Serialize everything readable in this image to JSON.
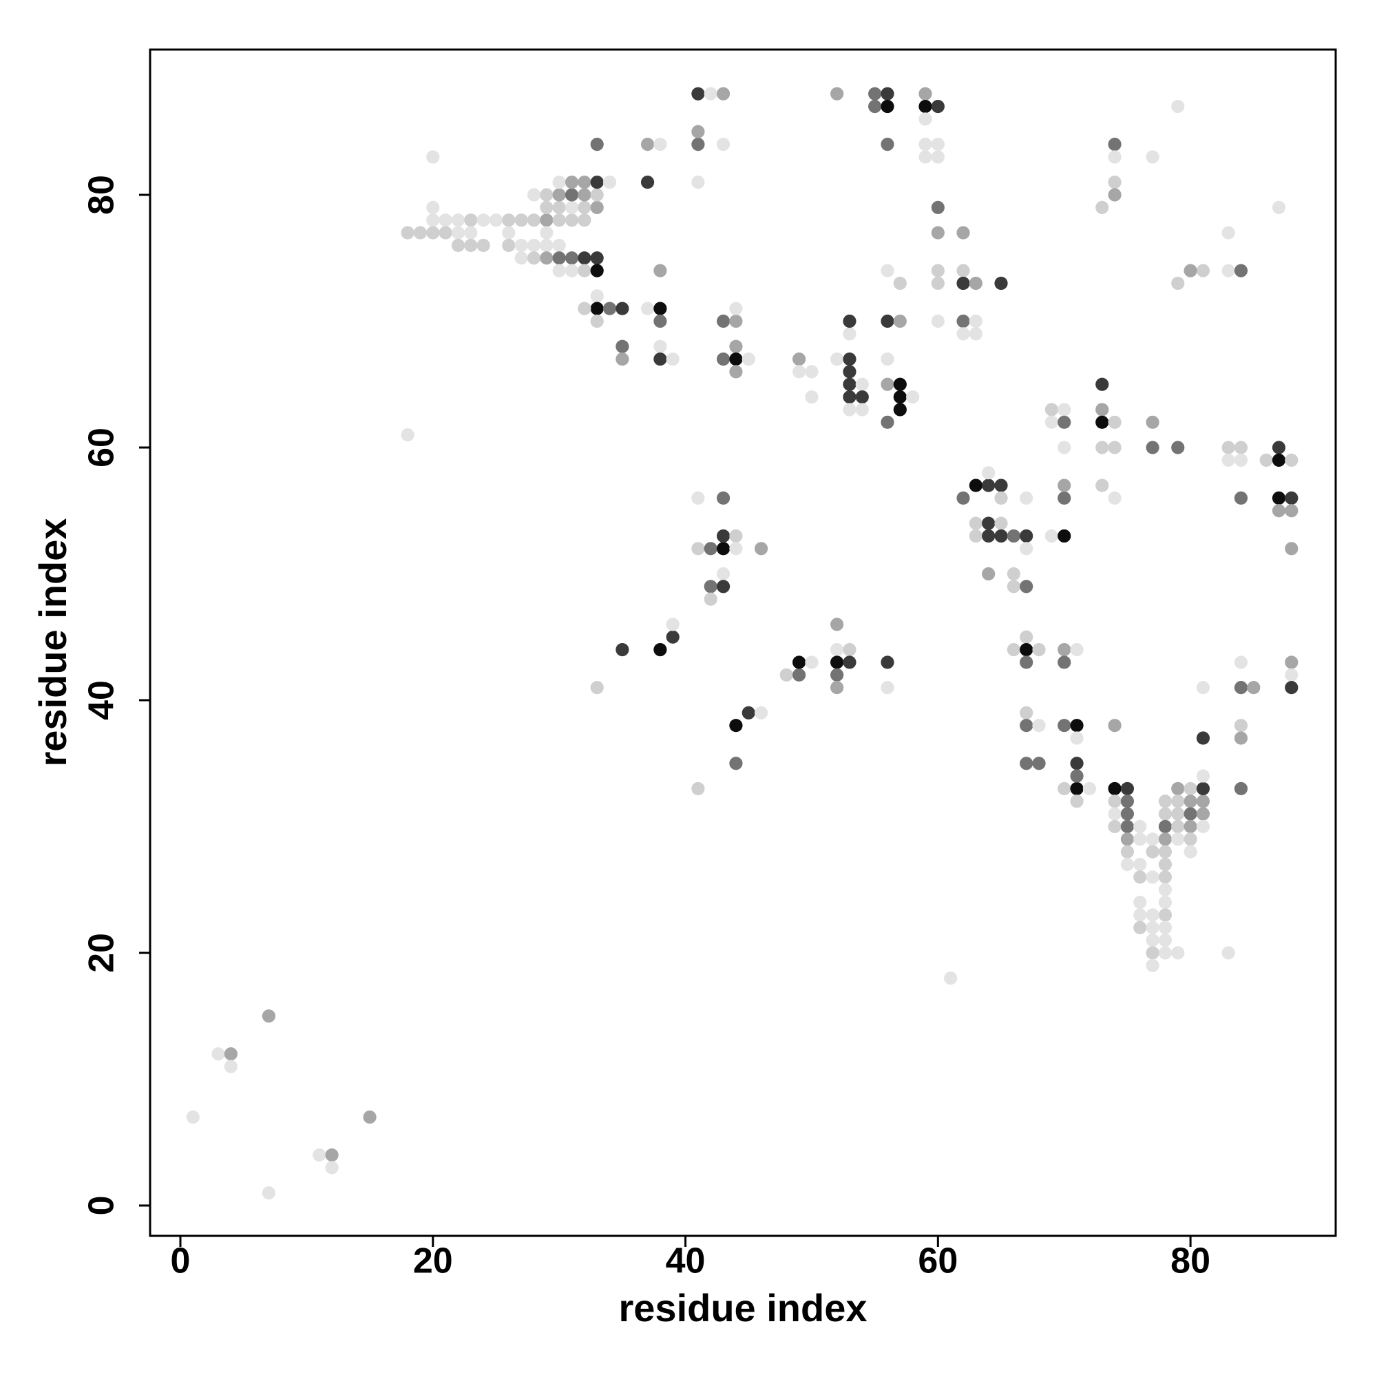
{
  "chart_data": {
    "type": "scatter",
    "x_label": "residue index",
    "y_label": "residue index",
    "xlim": [
      -2.4,
      91.5
    ],
    "ylim": [
      -2.4,
      91.5
    ],
    "xticks": [
      0,
      20,
      40,
      60,
      80
    ],
    "yticks": [
      0,
      20,
      40,
      60,
      80
    ],
    "grid": false,
    "palette": {
      "L": "#e3e3e3",
      "M": "#cfcfcf",
      "G": "#a6a6a6",
      "D": "#737373",
      "K": "#3a3a3a",
      "B": "#0d0d0d"
    },
    "x": [
      1,
      3,
      4,
      4,
      7,
      7,
      11,
      12,
      12,
      15,
      18,
      61,
      20,
      20,
      20,
      21,
      22,
      23,
      24,
      25,
      26,
      27,
      28,
      29,
      30,
      31,
      32,
      18,
      19,
      20,
      21,
      22,
      23,
      26,
      29,
      22,
      23,
      24,
      26,
      27,
      28,
      29,
      30,
      27,
      28,
      29,
      30,
      31,
      32,
      33,
      30,
      31,
      32,
      33,
      29,
      30,
      31,
      32,
      33,
      28,
      29,
      30,
      31,
      32,
      33,
      30,
      31,
      32,
      33,
      34,
      33,
      37,
      37,
      38,
      41,
      41,
      41,
      43,
      41,
      42,
      43,
      33,
      33,
      33,
      32,
      34,
      35,
      35,
      35,
      37,
      38,
      38,
      38,
      38,
      39,
      38,
      43,
      44,
      44,
      44,
      43,
      44,
      45,
      44,
      49,
      49,
      50,
      50,
      52,
      53,
      53,
      53,
      54,
      53,
      54,
      53,
      54,
      53,
      53,
      56,
      57,
      56,
      56,
      57,
      57,
      58,
      57,
      56,
      56,
      57,
      52,
      55,
      56,
      55,
      56,
      56,
      59,
      59,
      60,
      59,
      59,
      60,
      59,
      60,
      60,
      60,
      60,
      60,
      60,
      62,
      62,
      62,
      63,
      62,
      63,
      62,
      63,
      65,
      74,
      74,
      74,
      74,
      73,
      77,
      79,
      83,
      83,
      84,
      81,
      80,
      79,
      87,
      69,
      70,
      69,
      70,
      70,
      73,
      73,
      73,
      74,
      73,
      74,
      73,
      74,
      77,
      77,
      79,
      83,
      84,
      83,
      84,
      86,
      87,
      87,
      88,
      84,
      87,
      88,
      87,
      88,
      88,
      62,
      63,
      64,
      65,
      64,
      65,
      63,
      64,
      65,
      63,
      64,
      65,
      66,
      67,
      67,
      67,
      64,
      66,
      66,
      67,
      69,
      70,
      70,
      70,
      41,
      43,
      41,
      42,
      43,
      43,
      44,
      44,
      46,
      43,
      42,
      43,
      42,
      35,
      38,
      39,
      39,
      33,
      44,
      45,
      46,
      44,
      41,
      48,
      49,
      49,
      50,
      52,
      52,
      53,
      52,
      53,
      52,
      52,
      56,
      56,
      66,
      67,
      67,
      68,
      67,
      67,
      67,
      68,
      67,
      68,
      70,
      71,
      70,
      70,
      71,
      71,
      70,
      71,
      72,
      71,
      71,
      71,
      74,
      74,
      75,
      74,
      75,
      74,
      75,
      74,
      75,
      75,
      75,
      76,
      76,
      75,
      76,
      76,
      77,
      77,
      77,
      78,
      78,
      78,
      78,
      78,
      78,
      78,
      78,
      78,
      78,
      78,
      78,
      78,
      79,
      76,
      76,
      77,
      76,
      77,
      77,
      77,
      77,
      79,
      80,
      79,
      80,
      81,
      79,
      80,
      81,
      79,
      80,
      81,
      79,
      80,
      80,
      81,
      81,
      81,
      81,
      83,
      84,
      84,
      85,
      84,
      84,
      84,
      88,
      88,
      88
    ],
    "values": [
      7,
      12,
      12,
      11,
      15,
      1,
      4,
      4,
      3,
      7,
      61,
      18,
      83,
      79,
      78,
      78,
      78,
      78,
      78,
      78,
      78,
      78,
      78,
      78,
      78,
      78,
      78,
      77,
      77,
      77,
      77,
      77,
      77,
      77,
      77,
      76,
      76,
      76,
      76,
      76,
      76,
      76,
      76,
      75,
      75,
      75,
      75,
      75,
      75,
      75,
      74,
      74,
      74,
      74,
      79,
      79,
      79,
      79,
      79,
      80,
      80,
      80,
      80,
      80,
      80,
      81,
      81,
      81,
      81,
      81,
      84,
      81,
      84,
      84,
      84,
      85,
      81,
      84,
      88,
      88,
      88,
      72,
      71,
      70,
      71,
      71,
      71,
      68,
      67,
      71,
      71,
      70,
      68,
      67,
      67,
      74,
      70,
      70,
      71,
      68,
      67,
      67,
      67,
      66,
      67,
      66,
      66,
      64,
      67,
      67,
      66,
      65,
      65,
      64,
      64,
      63,
      63,
      69,
      70,
      70,
      70,
      67,
      65,
      65,
      64,
      64,
      63,
      62,
      74,
      73,
      88,
      88,
      88,
      87,
      87,
      84,
      88,
      87,
      87,
      86,
      84,
      84,
      83,
      83,
      79,
      77,
      74,
      73,
      70,
      77,
      74,
      73,
      73,
      70,
      70,
      69,
      69,
      73,
      84,
      83,
      81,
      80,
      79,
      83,
      87,
      77,
      74,
      74,
      74,
      74,
      73,
      79,
      63,
      63,
      62,
      62,
      60,
      65,
      63,
      62,
      62,
      60,
      60,
      57,
      56,
      62,
      60,
      60,
      60,
      60,
      59,
      59,
      59,
      60,
      59,
      59,
      56,
      56,
      56,
      55,
      55,
      52,
      56,
      57,
      57,
      57,
      58,
      56,
      54,
      54,
      54,
      53,
      53,
      53,
      53,
      53,
      52,
      56,
      50,
      50,
      49,
      49,
      53,
      53,
      56,
      57,
      56,
      56,
      52,
      52,
      52,
      53,
      53,
      52,
      52,
      50,
      49,
      49,
      48,
      44,
      44,
      45,
      46,
      41,
      38,
      39,
      39,
      35,
      33,
      42,
      42,
      43,
      43,
      46,
      44,
      44,
      43,
      43,
      42,
      41,
      43,
      41,
      44,
      45,
      44,
      44,
      43,
      39,
      38,
      38,
      35,
      35,
      44,
      44,
      43,
      38,
      38,
      37,
      33,
      33,
      33,
      35,
      34,
      32,
      38,
      33,
      33,
      32,
      32,
      31,
      31,
      30,
      30,
      29,
      28,
      29,
      30,
      27,
      27,
      26,
      26,
      29,
      28,
      32,
      31,
      30,
      29,
      28,
      27,
      26,
      25,
      24,
      23,
      22,
      21,
      20,
      20,
      24,
      23,
      23,
      22,
      22,
      21,
      20,
      19,
      33,
      33,
      32,
      32,
      32,
      31,
      31,
      31,
      30,
      30,
      30,
      29,
      29,
      28,
      33,
      37,
      34,
      41,
      20,
      43,
      41,
      41,
      38,
      37,
      33,
      43,
      42,
      41
    ],
    "shades": [
      "L",
      "L",
      "G",
      "L",
      "G",
      "L",
      "L",
      "G",
      "L",
      "G",
      "L",
      "L",
      "L",
      "L",
      "L",
      "L",
      "L",
      "M",
      "L",
      "L",
      "M",
      "M",
      "M",
      "G",
      "M",
      "M",
      "M",
      "M",
      "M",
      "M",
      "M",
      "L",
      "L",
      "L",
      "L",
      "M",
      "M",
      "M",
      "M",
      "L",
      "L",
      "L",
      "L",
      "L",
      "M",
      "G",
      "D",
      "D",
      "K",
      "K",
      "L",
      "L",
      "M",
      "B",
      "M",
      "M",
      "L",
      "M",
      "G",
      "L",
      "M",
      "G",
      "D",
      "G",
      "M",
      "L",
      "G",
      "G",
      "K",
      "L",
      "D",
      "K",
      "G",
      "L",
      "D",
      "G",
      "L",
      "L",
      "K",
      "L",
      "G",
      "L",
      "B",
      "M",
      "M",
      "D",
      "K",
      "D",
      "G",
      "L",
      "B",
      "D",
      "L",
      "K",
      "L",
      "G",
      "D",
      "G",
      "L",
      "G",
      "D",
      "B",
      "L",
      "G",
      "G",
      "L",
      "L",
      "L",
      "L",
      "K",
      "K",
      "K",
      "L",
      "K",
      "K",
      "L",
      "L",
      "L",
      "K",
      "K",
      "G",
      "L",
      "G",
      "B",
      "B",
      "L",
      "B",
      "D",
      "L",
      "M",
      "G",
      "D",
      "K",
      "D",
      "B",
      "D",
      "G",
      "B",
      "K",
      "L",
      "L",
      "L",
      "L",
      "L",
      "D",
      "G",
      "M",
      "M",
      "L",
      "G",
      "M",
      "K",
      "G",
      "D",
      "L",
      "L",
      "L",
      "K",
      "D",
      "L",
      "M",
      "G",
      "M",
      "L",
      "L",
      "L",
      "L",
      "D",
      "M",
      "G",
      "M",
      "L",
      "M",
      "L",
      "L",
      "D",
      "L",
      "K",
      "G",
      "B",
      "M",
      "M",
      "M",
      "M",
      "L",
      "G",
      "D",
      "D",
      "M",
      "M",
      "L",
      "L",
      "M",
      "K",
      "B",
      "M",
      "D",
      "B",
      "K",
      "G",
      "G",
      "G",
      "D",
      "B",
      "K",
      "K",
      "L",
      "M",
      "M",
      "K",
      "M",
      "M",
      "K",
      "K",
      "D",
      "K",
      "L",
      "L",
      "G",
      "M",
      "M",
      "D",
      "L",
      "B",
      "D",
      "G",
      "L",
      "D",
      "M",
      "D",
      "B",
      "K",
      "M",
      "L",
      "G",
      "L",
      "D",
      "K",
      "M",
      "K",
      "B",
      "K",
      "L",
      "M",
      "B",
      "K",
      "L",
      "D",
      "M",
      "M",
      "D",
      "B",
      "L",
      "G",
      "L",
      "M",
      "B",
      "K",
      "D",
      "G",
      "K",
      "L",
      "M",
      "M",
      "B",
      "M",
      "D",
      "M",
      "D",
      "L",
      "D",
      "D",
      "G",
      "L",
      "D",
      "D",
      "B",
      "L",
      "M",
      "B",
      "L",
      "K",
      "D",
      "M",
      "G",
      "B",
      "K",
      "M",
      "D",
      "L",
      "D",
      "M",
      "D",
      "G",
      "M",
      "L",
      "L",
      "L",
      "L",
      "M",
      "L",
      "L",
      "M",
      "M",
      "M",
      "D",
      "G",
      "M",
      "M",
      "M",
      "L",
      "L",
      "M",
      "L",
      "L",
      "L",
      "L",
      "L",
      "L",
      "L",
      "M",
      "L",
      "L",
      "M",
      "L",
      "G",
      "M",
      "M",
      "G",
      "G",
      "M",
      "D",
      "G",
      "M",
      "G",
      "L",
      "L",
      "M",
      "L",
      "K",
      "K",
      "L",
      "L",
      "L",
      "L",
      "D",
      "G",
      "M",
      "G",
      "D",
      "G",
      "L",
      "K"
    ]
  }
}
